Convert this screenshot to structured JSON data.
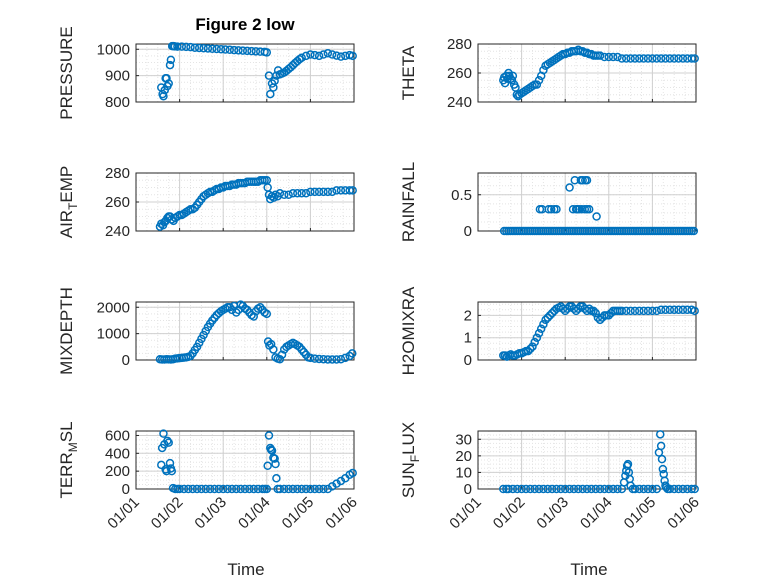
{
  "figure": {
    "title": "Figure 2 low",
    "marker_color": "#0072BD",
    "grid_color": "#d0d0d0",
    "axes_color": "#262626",
    "x_axis": {
      "label": "Time",
      "range": [
        0,
        5
      ],
      "tick_labels": [
        "01/01",
        "01/02",
        "01/03",
        "01/04",
        "01/05",
        "01/06"
      ]
    }
  },
  "chart_data": [
    {
      "type": "scatter",
      "ylabel": "PRESSURE",
      "ylim": [
        800,
        1020
      ],
      "yticks": [
        800,
        900,
        1000
      ],
      "grid": "major+minor",
      "x": [
        0.58,
        0.61,
        0.63,
        0.66,
        0.68,
        0.7,
        0.72,
        0.75,
        0.78,
        0.8,
        0.83,
        0.86,
        0.89,
        0.95,
        1.05,
        1.15,
        1.25,
        1.35,
        1.45,
        1.55,
        1.65,
        1.75,
        1.85,
        1.95,
        2.05,
        2.15,
        2.25,
        2.35,
        2.45,
        2.55,
        2.65,
        2.75,
        2.85,
        2.95,
        3.0,
        3.05,
        3.08,
        3.12,
        3.15,
        3.18,
        3.22,
        3.26,
        3.3,
        3.35,
        3.4,
        3.45,
        3.5,
        3.55,
        3.6,
        3.65,
        3.7,
        3.75,
        3.8,
        3.9,
        4.0,
        4.1,
        4.2,
        4.3,
        4.4,
        4.5,
        4.6,
        4.7,
        4.8,
        4.9,
        4.97
      ],
      "y": [
        855,
        830,
        822,
        845,
        890,
        890,
        860,
        870,
        940,
        960,
        1012,
        1012,
        1011,
        1010,
        1010,
        1009,
        1008,
        1006,
        1005,
        1004,
        1003,
        1002,
        1001,
        1000,
        999,
        998,
        997,
        996,
        995,
        994,
        993,
        992,
        991,
        990,
        988,
        900,
        830,
        870,
        855,
        880,
        900,
        920,
        905,
        908,
        912,
        918,
        925,
        932,
        940,
        948,
        955,
        962,
        968,
        975,
        980,
        978,
        975,
        980,
        985,
        980,
        976,
        972,
        975,
        978,
        975
      ]
    },
    {
      "type": "scatter",
      "ylabel": "THETA",
      "ylim": [
        240,
        280
      ],
      "yticks": [
        240,
        260,
        280
      ],
      "grid": "major+minor",
      "x": [
        0.58,
        0.6,
        0.62,
        0.65,
        0.68,
        0.7,
        0.72,
        0.75,
        0.78,
        0.8,
        0.83,
        0.86,
        0.89,
        0.92,
        0.95,
        1.0,
        1.05,
        1.1,
        1.15,
        1.2,
        1.25,
        1.3,
        1.35,
        1.4,
        1.45,
        1.5,
        1.55,
        1.6,
        1.65,
        1.7,
        1.75,
        1.8,
        1.85,
        1.9,
        1.95,
        2.0,
        2.05,
        2.1,
        2.15,
        2.2,
        2.25,
        2.3,
        2.35,
        2.4,
        2.45,
        2.5,
        2.55,
        2.6,
        2.65,
        2.7,
        2.75,
        2.8,
        2.9,
        3.0,
        3.1,
        3.2,
        3.3,
        3.4,
        3.5,
        3.6,
        3.7,
        3.8,
        3.9,
        4.0,
        4.1,
        4.2,
        4.3,
        4.4,
        4.5,
        4.6,
        4.7,
        4.8,
        4.9,
        4.97
      ],
      "y": [
        255,
        257,
        253,
        258,
        256,
        260,
        258,
        256,
        255,
        258,
        252,
        250,
        245,
        244,
        245,
        246,
        247,
        248,
        249,
        250,
        251,
        252,
        252,
        255,
        258,
        262,
        265,
        266,
        267,
        268,
        269,
        270,
        271,
        272,
        273,
        273,
        274,
        274,
        275,
        275,
        275,
        276,
        275,
        275,
        274,
        274,
        273,
        273,
        272,
        272,
        272,
        272,
        271,
        271,
        271,
        271,
        270,
        270,
        270,
        270,
        270,
        270,
        270,
        270,
        270,
        270,
        270,
        270,
        270,
        270,
        270,
        270,
        270,
        270
      ]
    },
    {
      "type": "scatter",
      "ylabel": "AIR_TEMP",
      "ylim": [
        240,
        280
      ],
      "yticks": [
        240,
        260,
        280
      ],
      "grid": "major+minor",
      "x": [
        0.55,
        0.58,
        0.62,
        0.65,
        0.68,
        0.72,
        0.75,
        0.78,
        0.82,
        0.86,
        0.9,
        0.95,
        1.0,
        1.05,
        1.1,
        1.15,
        1.2,
        1.25,
        1.3,
        1.35,
        1.4,
        1.45,
        1.5,
        1.55,
        1.6,
        1.65,
        1.7,
        1.75,
        1.8,
        1.85,
        1.9,
        1.95,
        2.0,
        2.05,
        2.1,
        2.15,
        2.2,
        2.25,
        2.3,
        2.35,
        2.4,
        2.45,
        2.5,
        2.55,
        2.6,
        2.65,
        2.7,
        2.75,
        2.8,
        2.85,
        2.9,
        2.95,
        3.0,
        3.02,
        3.05,
        3.08,
        3.12,
        3.16,
        3.2,
        3.25,
        3.3,
        3.4,
        3.5,
        3.6,
        3.7,
        3.8,
        3.9,
        4.0,
        4.1,
        4.2,
        4.3,
        4.4,
        4.5,
        4.6,
        4.7,
        4.8,
        4.9,
        4.97
      ],
      "y": [
        243,
        245,
        244,
        246,
        247,
        249,
        250,
        250,
        248,
        247,
        249,
        250,
        251,
        251,
        252,
        253,
        254,
        255,
        255,
        256,
        258,
        260,
        262,
        264,
        265,
        266,
        267,
        267,
        268,
        269,
        269,
        270,
        270,
        271,
        271,
        271,
        272,
        272,
        272,
        273,
        273,
        273,
        273,
        274,
        274,
        274,
        274,
        274,
        274,
        275,
        275,
        275,
        275,
        270,
        265,
        262,
        264,
        263,
        265,
        264,
        266,
        265,
        265,
        266,
        266,
        266,
        266,
        267,
        267,
        267,
        267,
        267,
        267,
        268,
        268,
        268,
        268,
        268
      ]
    },
    {
      "type": "scatter",
      "ylabel": "RAINFALL",
      "ylim": [
        0,
        0.8
      ],
      "yticks": [
        0,
        0.5
      ],
      "grid": "major+minor",
      "x": [
        0.6,
        0.65,
        0.7,
        0.75,
        0.8,
        0.85,
        0.9,
        0.95,
        1.0,
        1.05,
        1.1,
        1.15,
        1.2,
        1.25,
        1.3,
        1.35,
        1.4,
        1.45,
        1.5,
        1.55,
        1.6,
        1.65,
        1.7,
        1.75,
        1.8,
        1.85,
        1.9,
        1.95,
        2.0,
        2.05,
        2.1,
        2.15,
        2.2,
        2.25,
        2.3,
        2.35,
        2.4,
        2.45,
        2.5,
        2.55,
        2.6,
        2.65,
        2.7,
        2.75,
        2.8,
        2.85,
        2.9,
        2.95,
        3.0,
        3.05,
        3.1,
        3.15,
        3.2,
        3.25,
        3.3,
        3.35,
        3.4,
        3.45,
        3.5,
        3.55,
        3.6,
        3.65,
        3.7,
        3.75,
        3.8,
        3.85,
        3.9,
        3.95,
        4.0,
        4.05,
        4.1,
        4.15,
        4.2,
        4.25,
        4.3,
        4.35,
        4.4,
        4.45,
        4.5,
        4.55,
        4.6,
        4.65,
        4.7,
        4.75,
        4.8,
        4.85,
        4.9,
        4.95,
        1.42,
        1.47,
        1.62,
        1.68,
        1.75,
        1.8,
        2.1,
        2.18,
        2.25,
        2.28,
        2.32,
        2.38,
        2.45,
        2.5,
        2.55,
        2.22,
        2.36,
        2.4,
        2.46,
        2.5,
        2.72
      ],
      "y": [
        0,
        0,
        0,
        0,
        0,
        0,
        0,
        0,
        0,
        0,
        0,
        0,
        0,
        0,
        0,
        0,
        0,
        0,
        0,
        0,
        0,
        0,
        0,
        0,
        0,
        0,
        0,
        0,
        0,
        0,
        0,
        0,
        0,
        0,
        0,
        0,
        0,
        0,
        0,
        0,
        0,
        0,
        0,
        0,
        0,
        0,
        0,
        0,
        0,
        0,
        0,
        0,
        0,
        0,
        0,
        0,
        0,
        0,
        0,
        0,
        0,
        0,
        0,
        0,
        0,
        0,
        0,
        0,
        0,
        0,
        0,
        0,
        0,
        0,
        0,
        0,
        0,
        0,
        0,
        0,
        0,
        0,
        0,
        0,
        0,
        0,
        0,
        0,
        0.3,
        0.3,
        0.3,
        0.3,
        0.3,
        0.3,
        0.6,
        0.3,
        0.3,
        0.3,
        0.3,
        0.3,
        0.3,
        0.3,
        0.3,
        0.7,
        0.7,
        0.7,
        0.7,
        0.7,
        0.2
      ]
    },
    {
      "type": "scatter",
      "ylabel": "MIXDEPTH",
      "ylim": [
        0,
        2200
      ],
      "yticks": [
        0,
        1000,
        2000
      ],
      "grid": "major+minor",
      "x": [
        0.55,
        0.6,
        0.65,
        0.7,
        0.75,
        0.8,
        0.85,
        0.9,
        0.95,
        1.0,
        1.05,
        1.1,
        1.15,
        1.2,
        1.25,
        1.3,
        1.35,
        1.4,
        1.45,
        1.5,
        1.55,
        1.6,
        1.65,
        1.7,
        1.75,
        1.8,
        1.85,
        1.9,
        1.95,
        2.0,
        2.05,
        2.1,
        2.15,
        2.2,
        2.25,
        2.3,
        2.35,
        2.4,
        2.45,
        2.5,
        2.55,
        2.6,
        2.65,
        2.7,
        2.75,
        2.8,
        2.85,
        2.9,
        2.95,
        3.0,
        3.03,
        3.06,
        3.1,
        3.15,
        3.2,
        3.25,
        3.3,
        3.35,
        3.4,
        3.45,
        3.5,
        3.55,
        3.6,
        3.65,
        3.7,
        3.75,
        3.8,
        3.85,
        3.9,
        3.95,
        4.0,
        4.1,
        4.2,
        4.3,
        4.4,
        4.5,
        4.6,
        4.7,
        4.8,
        4.9,
        4.96
      ],
      "y": [
        30,
        20,
        20,
        30,
        25,
        20,
        30,
        50,
        60,
        70,
        80,
        90,
        100,
        120,
        150,
        250,
        380,
        500,
        650,
        800,
        950,
        1100,
        1250,
        1380,
        1500,
        1600,
        1700,
        1780,
        1850,
        1900,
        1950,
        2000,
        2000,
        1900,
        2050,
        1800,
        1900,
        2100,
        2050,
        1950,
        1900,
        1800,
        1700,
        1650,
        1850,
        1950,
        2000,
        1900,
        1800,
        1750,
        700,
        550,
        600,
        400,
        100,
        50,
        30,
        200,
        400,
        500,
        550,
        600,
        650,
        600,
        550,
        500,
        400,
        300,
        200,
        100,
        80,
        50,
        40,
        30,
        20,
        20,
        20,
        30,
        80,
        150,
        250
      ]
    },
    {
      "type": "scatter",
      "ylabel": "H2OMIXRA",
      "ylim": [
        0,
        2.6
      ],
      "yticks": [
        0,
        1,
        2
      ],
      "grid": "major+minor",
      "x": [
        0.58,
        0.62,
        0.66,
        0.7,
        0.75,
        0.8,
        0.85,
        0.9,
        0.95,
        1.0,
        1.05,
        1.1,
        1.15,
        1.2,
        1.25,
        1.3,
        1.35,
        1.4,
        1.45,
        1.5,
        1.55,
        1.6,
        1.65,
        1.7,
        1.75,
        1.8,
        1.85,
        1.9,
        1.95,
        2.0,
        2.05,
        2.1,
        2.15,
        2.2,
        2.25,
        2.3,
        2.35,
        2.4,
        2.45,
        2.5,
        2.55,
        2.6,
        2.65,
        2.7,
        2.75,
        2.8,
        2.85,
        2.9,
        2.95,
        3.0,
        3.05,
        3.1,
        3.15,
        3.2,
        3.25,
        3.3,
        3.4,
        3.5,
        3.6,
        3.7,
        3.8,
        3.9,
        4.0,
        4.1,
        4.2,
        4.3,
        4.4,
        4.5,
        4.6,
        4.7,
        4.8,
        4.9,
        4.97
      ],
      "y": [
        0.2,
        0.2,
        0.15,
        0.2,
        0.25,
        0.2,
        0.2,
        0.25,
        0.3,
        0.3,
        0.35,
        0.4,
        0.4,
        0.5,
        0.6,
        0.8,
        1.0,
        1.2,
        1.4,
        1.6,
        1.8,
        1.9,
        2.0,
        2.1,
        2.2,
        2.3,
        2.35,
        2.4,
        2.3,
        2.2,
        2.3,
        2.4,
        2.4,
        2.3,
        2.2,
        2.3,
        2.4,
        2.4,
        2.3,
        2.2,
        2.3,
        2.2,
        2.2,
        2.1,
        1.9,
        1.8,
        1.9,
        2.0,
        2.0,
        2.0,
        2.1,
        2.2,
        2.2,
        2.2,
        2.2,
        2.2,
        2.2,
        2.2,
        2.2,
        2.2,
        2.2,
        2.2,
        2.2,
        2.2,
        2.25,
        2.25,
        2.25,
        2.25,
        2.25,
        2.25,
        2.25,
        2.25,
        2.2
      ]
    },
    {
      "type": "scatter",
      "ylabel": "TERR_MSL",
      "ylim": [
        0,
        650
      ],
      "yticks": [
        0,
        200,
        400,
        600
      ],
      "grid": "major+minor",
      "x": [
        0.58,
        0.6,
        0.63,
        0.65,
        0.68,
        0.7,
        0.72,
        0.75,
        0.78,
        0.8,
        0.82,
        0.85,
        0.9,
        0.95,
        1.0,
        1.1,
        1.2,
        1.3,
        1.4,
        1.5,
        1.6,
        1.7,
        1.8,
        1.9,
        2.0,
        2.1,
        2.2,
        2.3,
        2.4,
        2.5,
        2.6,
        2.7,
        2.8,
        2.9,
        2.95,
        3.0,
        3.02,
        3.05,
        3.08,
        3.1,
        3.12,
        3.15,
        3.18,
        3.2,
        3.22,
        3.25,
        3.3,
        3.4,
        3.5,
        3.6,
        3.7,
        3.8,
        3.9,
        4.0,
        4.1,
        4.2,
        4.3,
        4.4,
        4.5,
        4.6,
        4.7,
        4.8,
        4.9,
        4.97
      ],
      "y": [
        270,
        460,
        620,
        500,
        220,
        200,
        540,
        520,
        290,
        230,
        200,
        10,
        0,
        0,
        0,
        0,
        0,
        0,
        0,
        0,
        0,
        0,
        0,
        0,
        0,
        0,
        0,
        0,
        0,
        0,
        0,
        0,
        0,
        0,
        0,
        0,
        260,
        600,
        460,
        440,
        430,
        350,
        340,
        280,
        120,
        0,
        0,
        0,
        0,
        0,
        0,
        0,
        0,
        0,
        0,
        0,
        0,
        0,
        30,
        60,
        90,
        120,
        160,
        180
      ]
    },
    {
      "type": "scatter",
      "ylabel": "SUN_FLUX",
      "ylim": [
        0,
        35
      ],
      "yticks": [
        0,
        10,
        20,
        30
      ],
      "grid": "major+minor",
      "x": [
        0.58,
        0.65,
        0.7,
        0.8,
        0.9,
        1.0,
        1.1,
        1.2,
        1.3,
        1.4,
        1.5,
        1.6,
        1.7,
        1.8,
        1.9,
        2.0,
        2.1,
        2.2,
        2.3,
        2.4,
        2.5,
        2.6,
        2.7,
        2.8,
        2.9,
        3.0,
        3.1,
        3.2,
        3.3,
        3.35,
        3.38,
        3.4,
        3.42,
        3.44,
        3.46,
        3.48,
        3.5,
        3.55,
        3.6,
        3.7,
        3.8,
        3.9,
        4.0,
        4.1,
        4.15,
        4.18,
        4.2,
        4.22,
        4.24,
        4.26,
        4.28,
        4.3,
        4.32,
        4.35,
        4.4,
        4.5,
        4.6,
        4.7,
        4.8,
        4.9,
        4.97
      ],
      "y": [
        0,
        0,
        0,
        0,
        0,
        0,
        0,
        0,
        0,
        0,
        0,
        0,
        0,
        0,
        0,
        0,
        0,
        0,
        0,
        0,
        0,
        0,
        0,
        0,
        0,
        0,
        0,
        0,
        0,
        4,
        8,
        11,
        14,
        15,
        10,
        6,
        2,
        0,
        0,
        0,
        0,
        0,
        0,
        0,
        22,
        33,
        26,
        18,
        12,
        9,
        5,
        2,
        1,
        0,
        0,
        0,
        0,
        0,
        0,
        0,
        0
      ]
    }
  ]
}
